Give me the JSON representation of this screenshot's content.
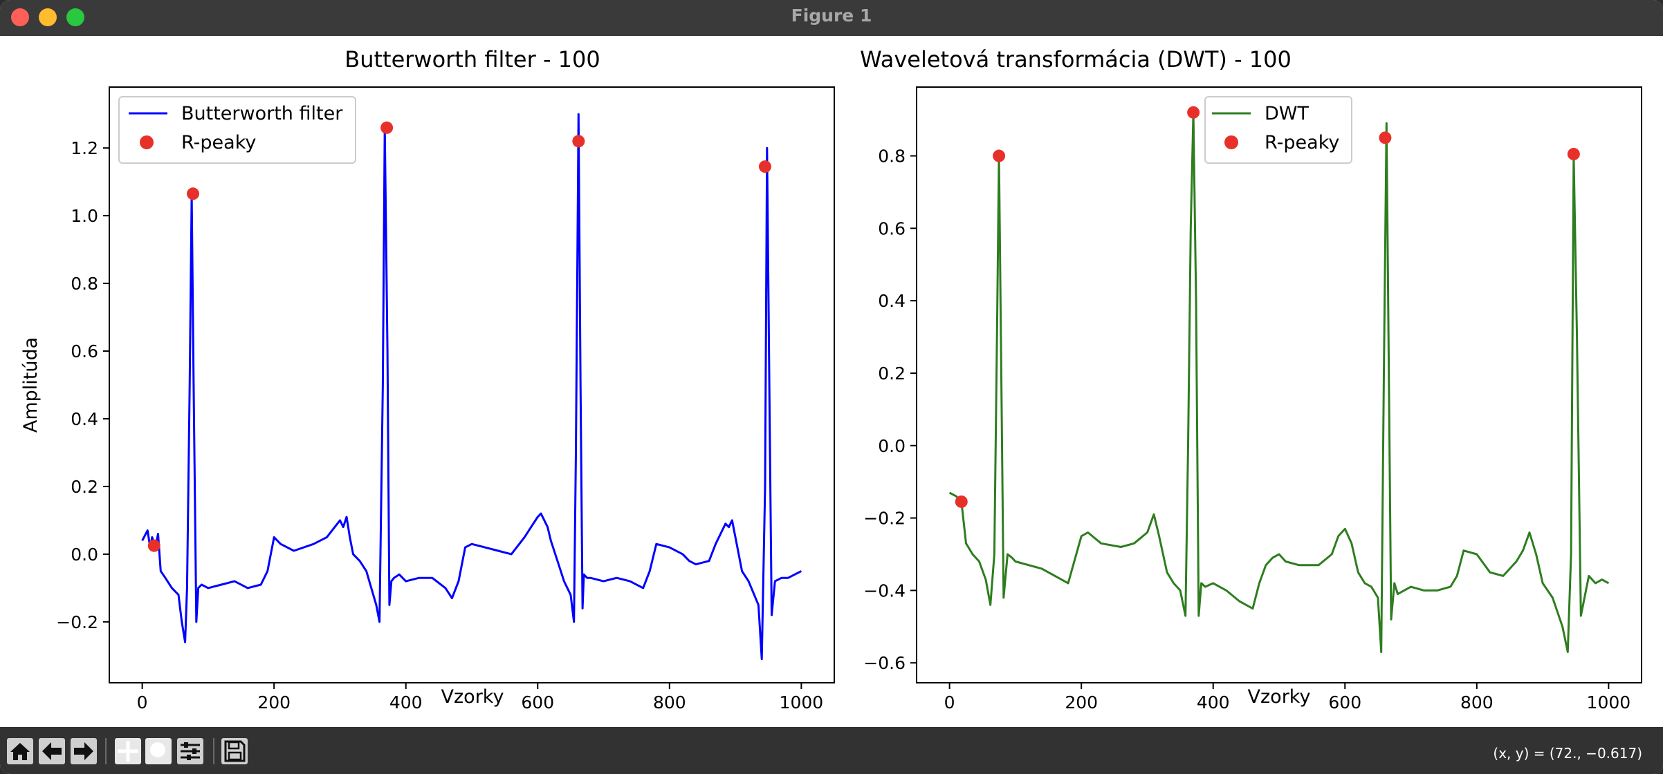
{
  "window": {
    "title": "Figure 1"
  },
  "toolbar": {
    "buttons": [
      {
        "name": "home-icon"
      },
      {
        "name": "back-arrow-icon"
      },
      {
        "name": "forward-arrow-icon"
      },
      {
        "name": "pan-icon"
      },
      {
        "name": "zoom-icon"
      },
      {
        "name": "configure-subplots-icon"
      },
      {
        "name": "save-icon"
      }
    ],
    "coordinates": "(x, y) = (72., −0.617)"
  },
  "colors": {
    "blue": "#0000ff",
    "green": "#2e7d1f",
    "peak": "#e8302a"
  },
  "chart_data": [
    {
      "type": "line",
      "title": "Butterworth filter - 100",
      "xlabel": "Vzorky",
      "ylabel": "Amplitúda",
      "xlim": [
        -50,
        1050
      ],
      "ylim": [
        -0.38,
        1.38
      ],
      "xticks": [
        0,
        200,
        400,
        600,
        800,
        1000
      ],
      "yticks": [
        -0.2,
        0.0,
        0.2,
        0.4,
        0.6,
        0.8,
        1.0,
        1.2
      ],
      "ytick_labels": [
        "−0.2",
        "0.0",
        "0.2",
        "0.4",
        "0.6",
        "0.8",
        "1.0",
        "1.2"
      ],
      "legend_position": "upper left",
      "series": [
        {
          "name": "Butterworth filter",
          "color": "#0000ff",
          "x": [
            0,
            8,
            12,
            15,
            20,
            24,
            28,
            35,
            45,
            55,
            60,
            65,
            68,
            72,
            75,
            78,
            82,
            85,
            90,
            100,
            120,
            140,
            160,
            180,
            190,
            200,
            210,
            230,
            260,
            280,
            300,
            305,
            310,
            315,
            320,
            330,
            340,
            355,
            360,
            365,
            368,
            372,
            375,
            378,
            382,
            390,
            400,
            420,
            440,
            460,
            470,
            480,
            490,
            500,
            520,
            540,
            560,
            580,
            590,
            600,
            605,
            615,
            620,
            630,
            640,
            650,
            655,
            658,
            662,
            665,
            668,
            670,
            675,
            680,
            700,
            720,
            740,
            760,
            770,
            780,
            800,
            820,
            830,
            840,
            860,
            870,
            880,
            885,
            890,
            895,
            900,
            910,
            920,
            935,
            940,
            945,
            948,
            952,
            955,
            960,
            970,
            980,
            990,
            1000
          ],
          "y": [
            0.04,
            0.07,
            0.02,
            0.05,
            0.02,
            0.06,
            -0.05,
            -0.07,
            -0.1,
            -0.12,
            -0.2,
            -0.26,
            -0.1,
            0.5,
            1.06,
            0.5,
            -0.2,
            -0.1,
            -0.09,
            -0.1,
            -0.09,
            -0.08,
            -0.1,
            -0.09,
            -0.05,
            0.05,
            0.03,
            0.01,
            0.03,
            0.05,
            0.1,
            0.08,
            0.11,
            0.05,
            0.0,
            -0.02,
            -0.05,
            -0.15,
            -0.2,
            0.5,
            1.26,
            0.6,
            -0.15,
            -0.08,
            -0.07,
            -0.06,
            -0.08,
            -0.07,
            -0.07,
            -0.1,
            -0.13,
            -0.08,
            0.02,
            0.03,
            0.02,
            0.01,
            0.0,
            0.05,
            0.08,
            0.11,
            0.12,
            0.08,
            0.04,
            -0.02,
            -0.08,
            -0.12,
            -0.2,
            0.3,
            1.3,
            0.5,
            -0.16,
            -0.06,
            -0.07,
            -0.07,
            -0.08,
            -0.07,
            -0.08,
            -0.1,
            -0.05,
            0.03,
            0.02,
            0.0,
            -0.02,
            -0.03,
            -0.02,
            0.03,
            0.07,
            0.09,
            0.08,
            0.1,
            0.05,
            -0.05,
            -0.08,
            -0.15,
            -0.31,
            0.2,
            1.2,
            0.4,
            -0.18,
            -0.08,
            -0.07,
            -0.07,
            -0.06,
            -0.05
          ]
        },
        {
          "name": "R-peaky",
          "type": "scatter",
          "color": "#e8302a",
          "x": [
            18,
            77,
            371,
            662,
            945
          ],
          "y": [
            0.025,
            1.065,
            1.26,
            1.22,
            1.145
          ]
        }
      ]
    },
    {
      "type": "line",
      "title": "Waveletová transformácia (DWT) - 100",
      "xlabel": "Vzorky",
      "ylabel": "",
      "xlim": [
        -50,
        1050
      ],
      "ylim": [
        -0.655,
        0.99
      ],
      "xticks": [
        0,
        200,
        400,
        600,
        800,
        1000
      ],
      "yticks": [
        -0.6,
        -0.4,
        -0.2,
        0.0,
        0.2,
        0.4,
        0.6,
        0.8
      ],
      "ytick_labels": [
        "−0.6",
        "−0.4",
        "−0.2",
        "0.0",
        "0.2",
        "0.4",
        "0.6",
        "0.8"
      ],
      "legend_position": "upper center",
      "series": [
        {
          "name": "DWT",
          "color": "#2e7d1f",
          "x": [
            0,
            10,
            18,
            25,
            35,
            45,
            55,
            62,
            68,
            72,
            75,
            78,
            82,
            88,
            95,
            100,
            120,
            140,
            160,
            180,
            200,
            210,
            230,
            260,
            280,
            300,
            310,
            318,
            330,
            340,
            350,
            358,
            362,
            366,
            370,
            374,
            378,
            382,
            388,
            400,
            420,
            440,
            460,
            470,
            480,
            490,
            500,
            510,
            530,
            560,
            580,
            590,
            600,
            610,
            620,
            630,
            640,
            650,
            655,
            659,
            663,
            666,
            670,
            675,
            680,
            700,
            720,
            740,
            760,
            770,
            780,
            800,
            820,
            840,
            860,
            870,
            880,
            890,
            900,
            915,
            930,
            938,
            943,
            947,
            952,
            958,
            970,
            980,
            990,
            1000
          ],
          "y": [
            -0.13,
            -0.14,
            -0.155,
            -0.27,
            -0.3,
            -0.32,
            -0.37,
            -0.44,
            -0.3,
            0.3,
            0.8,
            0.3,
            -0.42,
            -0.3,
            -0.31,
            -0.32,
            -0.33,
            -0.34,
            -0.36,
            -0.38,
            -0.25,
            -0.24,
            -0.27,
            -0.28,
            -0.27,
            -0.24,
            -0.19,
            -0.25,
            -0.35,
            -0.38,
            -0.4,
            -0.47,
            0.0,
            0.6,
            0.92,
            0.4,
            -0.47,
            -0.38,
            -0.39,
            -0.38,
            -0.4,
            -0.43,
            -0.45,
            -0.38,
            -0.33,
            -0.31,
            -0.3,
            -0.32,
            -0.33,
            -0.33,
            -0.3,
            -0.25,
            -0.23,
            -0.27,
            -0.35,
            -0.38,
            -0.39,
            -0.42,
            -0.57,
            0.2,
            0.89,
            0.3,
            -0.48,
            -0.38,
            -0.41,
            -0.39,
            -0.4,
            -0.4,
            -0.39,
            -0.36,
            -0.29,
            -0.3,
            -0.35,
            -0.36,
            -0.32,
            -0.29,
            -0.24,
            -0.3,
            -0.38,
            -0.42,
            -0.5,
            -0.57,
            -0.3,
            0.8,
            0.3,
            -0.47,
            -0.36,
            -0.38,
            -0.37,
            -0.38
          ]
        },
        {
          "name": "R-peaky",
          "type": "scatter",
          "color": "#e8302a",
          "x": [
            18,
            75,
            370,
            661,
            947
          ],
          "y": [
            -0.155,
            0.8,
            0.92,
            0.85,
            0.805
          ]
        }
      ]
    }
  ]
}
